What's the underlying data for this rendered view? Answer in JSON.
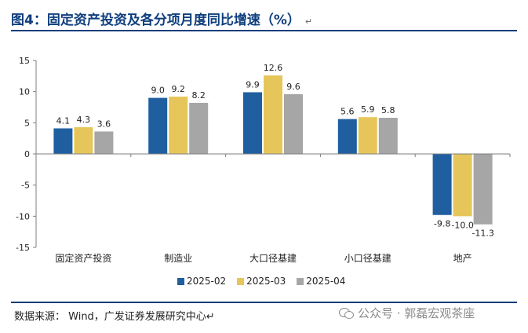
{
  "title": "图4：固定资产投资及各分项月度同比增速（%）",
  "title_return_mark": "↵",
  "source": "数据来源： Wind，广发证券发展研究中心↵",
  "watermark": "公众号 · 郭磊宏观茶座",
  "chart_data": {
    "type": "bar",
    "categories": [
      "固定资产投资",
      "制造业",
      "大口径基建",
      "小口径基建",
      "地产"
    ],
    "series": [
      {
        "name": "2025-02",
        "color": "#1f5fa0",
        "values": [
          4.1,
          9.0,
          9.9,
          5.6,
          -9.8
        ],
        "labels": [
          "4.1",
          "9.0",
          "9.9",
          "5.6",
          "-9.8"
        ]
      },
      {
        "name": "2025-03",
        "color": "#e6c65b",
        "values": [
          4.3,
          9.2,
          12.6,
          5.9,
          -10.0
        ],
        "labels": [
          "4.3",
          "9.2",
          "12.6",
          "5.9",
          "-10.0"
        ]
      },
      {
        "name": "2025-04",
        "color": "#a6a6a6",
        "values": [
          3.6,
          8.2,
          9.6,
          5.8,
          -11.3
        ],
        "labels": [
          "3.6",
          "8.2",
          "9.6",
          "5.8",
          "-11.3"
        ]
      }
    ],
    "ylim": [
      -15,
      15
    ],
    "yticks": [
      15,
      10,
      5,
      0,
      -5,
      -10,
      -15
    ],
    "ytick_labels": [
      "15",
      "10",
      "5",
      "0",
      "-5",
      "-10",
      "-15"
    ],
    "legend_position": "bottom",
    "grid": false
  }
}
